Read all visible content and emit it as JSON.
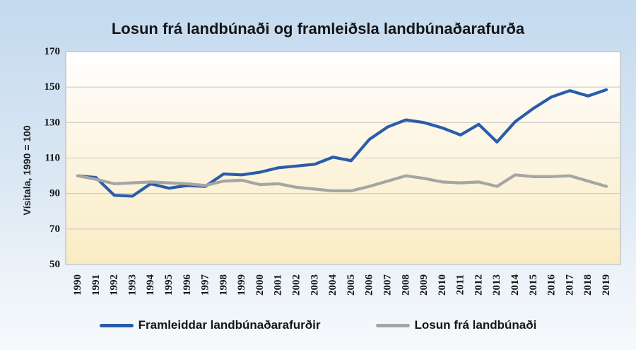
{
  "chart_data": {
    "type": "line",
    "title": "Losun frá landbúnaði og framleiðsla landbúnaðarafurða",
    "ylabel": "Vísitala, 1990 = 100",
    "xlabel": "",
    "x": [
      1990,
      1991,
      1992,
      1993,
      1994,
      1995,
      1996,
      1997,
      1998,
      1999,
      2000,
      2001,
      2002,
      2003,
      2004,
      2005,
      2006,
      2007,
      2008,
      2009,
      2010,
      2011,
      2012,
      2013,
      2014,
      2015,
      2016,
      2017,
      2018,
      2019
    ],
    "ylim": [
      50,
      170
    ],
    "y_ticks": [
      50,
      70,
      90,
      110,
      130,
      150,
      170
    ],
    "grid": true,
    "legend_position": "bottom",
    "series": [
      {
        "name": "Framleiddar landbúnaðarafurðir",
        "color": "#2a5caa",
        "values": [
          100,
          99,
          89,
          88.5,
          95.5,
          93,
          94.5,
          94,
          101,
          100.5,
          102,
          104.5,
          105.5,
          106.5,
          110.5,
          108.5,
          120.5,
          127.5,
          131.5,
          130,
          127,
          123,
          129,
          119,
          130.5,
          138,
          144.5,
          148,
          145,
          148.5
        ]
      },
      {
        "name": "Losun frá landbúnaði",
        "color": "#a5a5a5",
        "values": [
          100,
          98,
          95.5,
          96,
          96.5,
          96,
          95.5,
          94.5,
          97,
          97.5,
          95,
          95.5,
          93.5,
          92.5,
          91.5,
          91.5,
          94,
          97,
          100,
          98.5,
          96.5,
          96,
          96.5,
          94,
          100.5,
          99.5,
          99.5,
          100,
          97,
          94
        ]
      }
    ],
    "plot_style": {
      "plot_bg_top": "#ffffff",
      "plot_bg_mid": "#fdf7e8",
      "plot_bg_bottom": "#f9ecc4",
      "grid_color": "#c9c9c9",
      "border_color": "#b3b3b3",
      "line_width": 4.2
    }
  }
}
